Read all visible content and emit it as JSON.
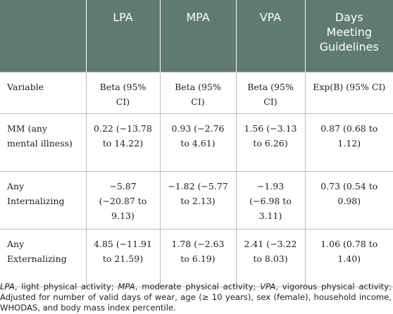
{
  "table": {
    "header": [
      "",
      "LPA",
      "MPA",
      "VPA",
      "Days Meeting Guidelines"
    ],
    "rows": [
      [
        "Variable",
        "Beta (95% CI)",
        "Beta (95% CI)",
        "Beta (95% CI)",
        "Exp(B) (95% CI)"
      ],
      [
        "MM (any mental illness)",
        "0.22 (−13.78 to 14.22)",
        "0.93 (−2.76 to 4.61)",
        "1.56 (−3.13 to 6.26)",
        "0.87 (0.68 to 1.12)"
      ],
      [
        "Any Internalizing",
        "−5.87 (−20.87 to 9.13)",
        "−1.82 (−5.77 to 2.13)",
        "−1.93 (−6.98 to 3.11)",
        "0.73 (0.54 to 0.98)"
      ],
      [
        "Any Externalizing",
        "4.85 (−11.91 to 21.59)",
        "1.78 (−2.63 to 6.19)",
        "2.41 (−3.22 to 8.03)",
        "1.06 (0.78 to 1.40)"
      ]
    ]
  },
  "footnote": [
    "LPA",
    ", light physical activity; ",
    "MPA",
    ", moderate physical activity; ",
    "VPA",
    ", vigorous physical activity; Adjusted for number of valid days of wear, age (≥ 10 years), sex (female), household income, WHODAS, and body mass index percentile."
  ]
}
